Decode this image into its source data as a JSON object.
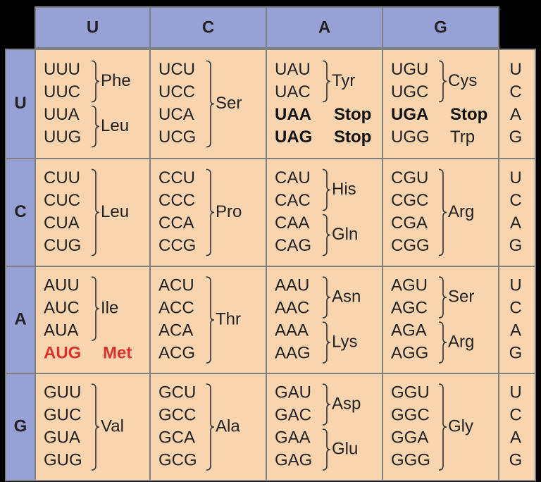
{
  "column_headers": [
    "U",
    "C",
    "A",
    "G"
  ],
  "third_base": [
    "U",
    "C",
    "A",
    "G"
  ],
  "rows": [
    {
      "label": "U",
      "cells": [
        {
          "groups": [
            {
              "codons": [
                "UUU",
                "UUC"
              ],
              "amino": "Phe"
            },
            {
              "codons": [
                "UUA",
                "UUG"
              ],
              "amino": "Leu"
            }
          ]
        },
        {
          "groups": [
            {
              "codons": [
                "UCU",
                "UCC",
                "UCA",
                "UCG"
              ],
              "amino": "Ser"
            }
          ]
        },
        {
          "groups": [
            {
              "codons": [
                "UAU",
                "UAC"
              ],
              "amino": "Tyr"
            },
            {
              "codons": [
                "UAA"
              ],
              "amino": "Stop",
              "style": "stop"
            },
            {
              "codons": [
                "UAG"
              ],
              "amino": "Stop",
              "style": "stop"
            }
          ]
        },
        {
          "groups": [
            {
              "codons": [
                "UGU",
                "UGC"
              ],
              "amino": "Cys"
            },
            {
              "codons": [
                "UGA"
              ],
              "amino": "Stop",
              "style": "stop"
            },
            {
              "codons": [
                "UGG"
              ],
              "amino": "Trp"
            }
          ]
        }
      ]
    },
    {
      "label": "C",
      "cells": [
        {
          "groups": [
            {
              "codons": [
                "CUU",
                "CUC",
                "CUA",
                "CUG"
              ],
              "amino": "Leu"
            }
          ]
        },
        {
          "groups": [
            {
              "codons": [
                "CCU",
                "CCC",
                "CCA",
                "CCG"
              ],
              "amino": "Pro"
            }
          ]
        },
        {
          "groups": [
            {
              "codons": [
                "CAU",
                "CAC"
              ],
              "amino": "His"
            },
            {
              "codons": [
                "CAA",
                "CAG"
              ],
              "amino": "Gln"
            }
          ]
        },
        {
          "groups": [
            {
              "codons": [
                "CGU",
                "CGC",
                "CGA",
                "CGG"
              ],
              "amino": "Arg"
            }
          ]
        }
      ]
    },
    {
      "label": "A",
      "cells": [
        {
          "groups": [
            {
              "codons": [
                "AUU",
                "AUC",
                "AUA"
              ],
              "amino": "Ile"
            },
            {
              "codons": [
                "AUG"
              ],
              "amino": "Met",
              "style": "start"
            }
          ]
        },
        {
          "groups": [
            {
              "codons": [
                "ACU",
                "ACC",
                "ACA",
                "ACG"
              ],
              "amino": "Thr"
            }
          ]
        },
        {
          "groups": [
            {
              "codons": [
                "AAU",
                "AAC"
              ],
              "amino": "Asn"
            },
            {
              "codons": [
                "AAA",
                "AAG"
              ],
              "amino": "Lys"
            }
          ]
        },
        {
          "groups": [
            {
              "codons": [
                "AGU",
                "AGC"
              ],
              "amino": "Ser"
            },
            {
              "codons": [
                "AGA",
                "AGG"
              ],
              "amino": "Arg"
            }
          ]
        }
      ]
    },
    {
      "label": "G",
      "cells": [
        {
          "groups": [
            {
              "codons": [
                "GUU",
                "GUC",
                "GUA",
                "GUG"
              ],
              "amino": "Val"
            }
          ]
        },
        {
          "groups": [
            {
              "codons": [
                "GCU",
                "GCC",
                "GCA",
                "GCG"
              ],
              "amino": "Ala"
            }
          ]
        },
        {
          "groups": [
            {
              "codons": [
                "GAU",
                "GAC"
              ],
              "amino": "Asp"
            },
            {
              "codons": [
                "GAA",
                "GAG"
              ],
              "amino": "Glu"
            }
          ]
        },
        {
          "groups": [
            {
              "codons": [
                "GGU",
                "GGC",
                "GGA",
                "GGG"
              ],
              "amino": "Gly"
            }
          ]
        }
      ]
    }
  ]
}
